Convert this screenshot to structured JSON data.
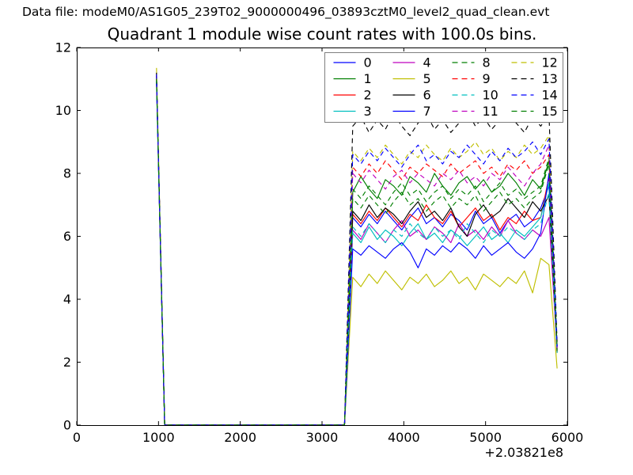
{
  "header": {
    "data_file_label": "Data file: modeM0/AS1G05_239T02_9000000496_03893cztM0_level2_quad_clean.evt"
  },
  "chart_data": {
    "type": "line",
    "title": "Quadrant 1 module wise count rates with 100.0s bins.",
    "xlabel": "",
    "ylabel": "",
    "xlim": [
      0,
      6000
    ],
    "ylim": [
      0,
      12
    ],
    "xticks": [
      0,
      1000,
      2000,
      3000,
      4000,
      5000,
      6000
    ],
    "xtick_labels": [
      "0",
      "1000",
      "2000",
      "3000",
      "4000",
      "5000",
      "6000"
    ],
    "yticks": [
      0,
      2,
      4,
      6,
      8,
      10,
      12
    ],
    "ytick_labels": [
      "0",
      "2",
      "4",
      "6",
      "8",
      "10",
      "12"
    ],
    "x_offset_label": "+2.03821e8",
    "grid": false,
    "legend": {
      "position": "upper right",
      "columns": 4,
      "frame_color": "#7f7f7f"
    },
    "sampling": {
      "first_x": 975,
      "step": 100,
      "zero_count": 23,
      "structure": "values per series = [peak at x=975] + [23 zeros, x=1075..3275] + [25 plateau points, x=3375..5775] + [end at x=5875]"
    },
    "series": [
      {
        "label": "0",
        "color": "#0000ff",
        "linestyle": "solid",
        "peak": 11.0,
        "plateau": [
          6.6,
          6.3,
          6.7,
          6.4,
          6.8,
          6.5,
          6.2,
          6.6,
          6.9,
          6.4,
          6.6,
          6.3,
          6.7,
          6.5,
          6.2,
          6.8,
          6.4,
          6.6,
          6.1,
          6.5,
          6.7,
          6.3,
          6.5,
          6.9,
          7.6
        ],
        "end": 2.4
      },
      {
        "label": "1",
        "color": "#007f00",
        "linestyle": "solid",
        "peak": 11.1,
        "plateau": [
          7.4,
          7.9,
          7.5,
          7.2,
          7.8,
          7.6,
          7.3,
          7.9,
          7.7,
          7.4,
          8.0,
          7.6,
          7.3,
          7.7,
          7.9,
          7.5,
          7.8,
          7.4,
          7.6,
          8.0,
          7.7,
          7.3,
          7.8,
          7.5,
          8.4
        ],
        "end": 2.5
      },
      {
        "label": "2",
        "color": "#ff0000",
        "linestyle": "solid",
        "peak": 10.95,
        "plateau": [
          6.7,
          6.4,
          6.8,
          6.5,
          6.9,
          6.6,
          6.3,
          6.7,
          6.5,
          7.0,
          6.6,
          6.4,
          6.8,
          6.3,
          6.6,
          6.9,
          6.5,
          6.7,
          6.2,
          6.6,
          6.4,
          6.8,
          6.5,
          6.6,
          7.9
        ],
        "end": 2.3
      },
      {
        "label": "3",
        "color": "#00bfbf",
        "linestyle": "solid",
        "peak": 10.9,
        "plateau": [
          6.1,
          5.8,
          6.3,
          5.9,
          6.2,
          6.0,
          5.7,
          6.1,
          6.4,
          5.9,
          6.1,
          5.8,
          6.2,
          6.0,
          5.7,
          6.0,
          6.3,
          5.9,
          6.1,
          5.8,
          6.2,
          6.0,
          6.3,
          6.6,
          7.7
        ],
        "end": 2.3
      },
      {
        "label": "4",
        "color": "#bf00bf",
        "linestyle": "solid",
        "peak": 11.0,
        "plateau": [
          6.2,
          5.9,
          6.4,
          6.1,
          5.8,
          6.2,
          6.5,
          6.0,
          6.2,
          5.9,
          6.3,
          6.1,
          5.8,
          6.4,
          6.0,
          6.2,
          5.9,
          6.3,
          6.0,
          6.5,
          6.1,
          5.9,
          6.2,
          6.0,
          6.6
        ],
        "end": 2.35
      },
      {
        "label": "5",
        "color": "#bfbf00",
        "linestyle": "solid",
        "peak": 11.2,
        "plateau": [
          4.7,
          4.4,
          4.8,
          4.5,
          4.9,
          4.6,
          4.3,
          4.7,
          4.5,
          4.8,
          4.4,
          4.6,
          4.9,
          4.5,
          4.7,
          4.3,
          4.8,
          4.6,
          4.4,
          4.7,
          4.5,
          4.9,
          4.2,
          5.3,
          5.1
        ],
        "end": 1.8
      },
      {
        "label": "6",
        "color": "#000000",
        "linestyle": "solid",
        "peak": 11.05,
        "plateau": [
          6.8,
          6.5,
          7.0,
          6.6,
          6.9,
          6.7,
          6.4,
          6.8,
          7.1,
          6.6,
          6.8,
          6.5,
          6.9,
          6.3,
          6.0,
          6.7,
          7.0,
          6.6,
          6.8,
          7.2,
          6.9,
          6.6,
          7.1,
          6.8,
          7.3
        ],
        "end": 2.45
      },
      {
        "label": "7",
        "color": "#0000ff",
        "linestyle": "solid",
        "peak": 10.9,
        "plateau": [
          5.6,
          5.4,
          5.7,
          5.5,
          5.3,
          5.6,
          5.8,
          5.5,
          5.0,
          5.6,
          5.4,
          5.7,
          5.5,
          5.8,
          5.6,
          5.3,
          5.7,
          5.4,
          5.6,
          5.8,
          5.5,
          5.3,
          5.6,
          6.1,
          8.0
        ],
        "end": 2.5
      },
      {
        "label": "8",
        "color": "#007f00",
        "linestyle": "dashed",
        "peak": 11.1,
        "plateau": [
          7.5,
          7.2,
          7.6,
          7.3,
          7.0,
          7.4,
          7.7,
          7.3,
          7.5,
          7.1,
          7.4,
          7.6,
          7.2,
          7.5,
          7.3,
          7.6,
          7.1,
          7.4,
          7.7,
          7.3,
          7.5,
          7.2,
          7.4,
          7.6,
          8.5
        ],
        "end": 2.4
      },
      {
        "label": "9",
        "color": "#ff0000",
        "linestyle": "dashed",
        "peak": 11.15,
        "plateau": [
          8.2,
          7.9,
          8.3,
          8.0,
          8.4,
          8.1,
          7.8,
          8.2,
          8.0,
          8.3,
          8.1,
          7.9,
          8.3,
          8.0,
          8.2,
          8.4,
          8.0,
          8.2,
          7.9,
          8.3,
          8.1,
          8.4,
          8.0,
          8.2,
          8.6
        ],
        "end": 2.5
      },
      {
        "label": "10",
        "color": "#00bfbf",
        "linestyle": "dashed",
        "peak": 10.95,
        "plateau": [
          6.3,
          6.0,
          6.4,
          6.1,
          5.8,
          6.2,
          6.0,
          6.4,
          6.1,
          5.9,
          6.3,
          6.0,
          6.2,
          5.9,
          6.4,
          6.1,
          5.8,
          6.2,
          6.0,
          6.3,
          6.1,
          5.9,
          6.2,
          6.4,
          7.4
        ],
        "end": 2.3
      },
      {
        "label": "11",
        "color": "#bf00bf",
        "linestyle": "dashed",
        "peak": 11.1,
        "plateau": [
          8.0,
          7.7,
          8.1,
          7.8,
          7.5,
          7.9,
          8.1,
          7.7,
          8.0,
          7.8,
          7.6,
          8.0,
          7.8,
          8.1,
          7.7,
          7.9,
          7.6,
          8.0,
          7.8,
          8.2,
          7.9,
          7.6,
          8.0,
          8.3,
          8.9
        ],
        "end": 2.45
      },
      {
        "label": "12",
        "color": "#bfbf00",
        "linestyle": "dashed",
        "peak": 11.35,
        "plateau": [
          8.7,
          8.4,
          8.8,
          8.5,
          8.9,
          8.6,
          8.3,
          8.7,
          8.5,
          8.9,
          8.6,
          8.4,
          8.8,
          8.5,
          8.7,
          9.0,
          8.6,
          8.8,
          8.4,
          8.7,
          8.5,
          8.9,
          8.6,
          8.8,
          9.2
        ],
        "end": 2.55
      },
      {
        "label": "13",
        "color": "#000000",
        "linestyle": "dashed",
        "peak": 11.2,
        "plateau": [
          9.5,
          9.8,
          9.3,
          9.7,
          9.4,
          9.9,
          9.5,
          9.2,
          9.6,
          9.9,
          9.4,
          9.7,
          9.3,
          9.6,
          10.0,
          9.5,
          9.8,
          9.4,
          9.7,
          9.9,
          9.6,
          9.3,
          9.8,
          9.5,
          9.9
        ],
        "end": 2.6
      },
      {
        "label": "14",
        "color": "#0000ff",
        "linestyle": "dashed",
        "peak": 11.15,
        "plateau": [
          8.6,
          8.3,
          8.7,
          8.4,
          8.8,
          8.5,
          8.2,
          8.6,
          8.9,
          8.4,
          8.6,
          8.3,
          8.7,
          8.5,
          8.9,
          8.6,
          8.3,
          8.7,
          8.4,
          8.8,
          8.5,
          8.7,
          9.0,
          8.6,
          9.1
        ],
        "end": 2.5
      },
      {
        "label": "15",
        "color": "#007f00",
        "linestyle": "dashed",
        "peak": 11.0,
        "plateau": [
          7.2,
          6.9,
          7.3,
          7.0,
          6.7,
          7.1,
          7.4,
          7.0,
          7.2,
          6.8,
          7.1,
          7.3,
          6.9,
          7.2,
          7.0,
          7.3,
          6.8,
          7.1,
          7.4,
          7.0,
          7.2,
          6.9,
          7.2,
          7.4,
          8.3
        ],
        "end": 2.35
      }
    ]
  }
}
